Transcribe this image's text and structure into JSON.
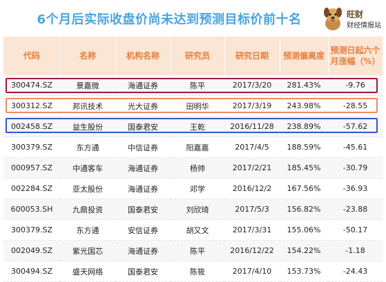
{
  "title": "6个月后实际收盘价尚未达到预测目标价前十名",
  "logo": {
    "brand": "旺财",
    "sub": "财经情报站"
  },
  "columns": [
    "代码",
    "名称",
    "机构名称",
    "研究员",
    "研究日期",
    "预测偏离度",
    "预测日起六个月涨幅（%）"
  ],
  "rows": [
    [
      "300474.SZ",
      "景嘉微",
      "海通证券",
      "陈平",
      "2017/3/20",
      "281.43%",
      "-9.76"
    ],
    [
      "300312.SZ",
      "邦讯技术",
      "光大证券",
      "田明华",
      "2017/3/19",
      "243.98%",
      "-28.55"
    ],
    [
      "002458.SZ",
      "益生股份",
      "国泰君安",
      "王乾",
      "2016/11/28",
      "238.89%",
      "-57.62"
    ],
    [
      "300379.SZ",
      "东方通",
      "中信证券",
      "阳嘉嘉",
      "2017/4/5",
      "188.59%",
      "-45.61"
    ],
    [
      "000957.SZ",
      "中通客车",
      "海通证券",
      "杨帅",
      "2017/2/21",
      "185.45%",
      "-30.79"
    ],
    [
      "002284.SZ",
      "亚太股份",
      "海通证券",
      "邓学",
      "2016/12/2",
      "167.56%",
      "-36.93"
    ],
    [
      "600053.SH",
      "九鼎投资",
      "国泰君安",
      "刘欣琦",
      "2017/5/3",
      "156.82%",
      "-23.88"
    ],
    [
      "300379.SZ",
      "东方通",
      "安信证券",
      "胡又文",
      "2017/3/31",
      "155.06%",
      "-50.17"
    ],
    [
      "002049.SZ",
      "紫光国芯",
      "海通证券",
      "陈平",
      "2016/12/22",
      "154.22%",
      "-1.18"
    ],
    [
      "300494.SZ",
      "盛天网络",
      "国泰君安",
      "陈筱",
      "2017/4/10",
      "153.73%",
      "-24.43"
    ]
  ],
  "highlight_colors": [
    "#9b1c3a",
    "#f08a5d",
    "#2f57c6"
  ]
}
